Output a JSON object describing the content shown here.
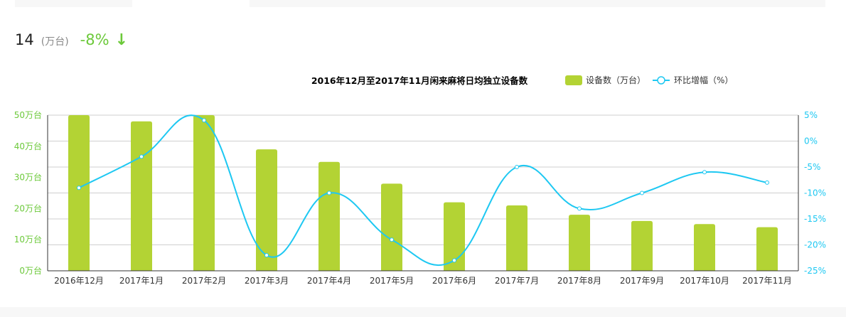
{
  "summary": {
    "value": "14",
    "unit": "(万台)",
    "change": "-8%",
    "trend_icon": "arrow-down"
  },
  "colors": {
    "bar": "#b3d334",
    "line": "#1ec8f2",
    "left_axis": "#6cc93a",
    "right_axis": "#1ec8f2",
    "down": "#6cc93a"
  },
  "chart_data": {
    "type": "bar",
    "title": "2016年12月至2017年11月闲来麻将日均独立设备数",
    "categories": [
      "2016年12月",
      "2017年1月",
      "2017年2月",
      "2017年3月",
      "2017年4月",
      "2017年5月",
      "2017年6月",
      "2017年7月",
      "2017年8月",
      "2017年9月",
      "2017年10月",
      "2017年11月"
    ],
    "series": [
      {
        "name": "设备数（万台）",
        "type": "bar",
        "axis": "left",
        "values": [
          50,
          48,
          50,
          39,
          35,
          28,
          22,
          21,
          18,
          16,
          15,
          14
        ]
      },
      {
        "name": "环比增幅（%）",
        "type": "line",
        "smooth": true,
        "axis": "right",
        "values": [
          -9,
          -3,
          4,
          -22,
          -10,
          -19,
          -23,
          -5,
          -13,
          -10,
          -6,
          -8
        ]
      }
    ],
    "y_left": {
      "ylim": [
        0,
        50
      ],
      "ticks": [
        "0万台",
        "10万台",
        "20万台",
        "30万台",
        "40万台",
        "50万台"
      ]
    },
    "y_right": {
      "ylim": [
        -25,
        5
      ],
      "ticks": [
        "-25%",
        "-20%",
        "-15%",
        "-10%",
        "-5%",
        "0%",
        "5%"
      ]
    },
    "grid": true,
    "legend": "top-right"
  }
}
